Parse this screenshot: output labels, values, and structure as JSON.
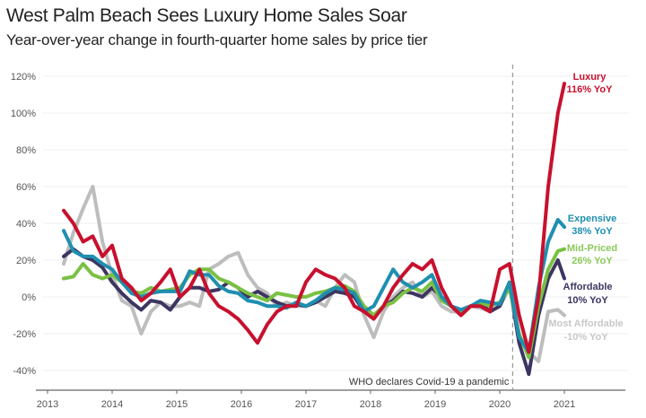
{
  "title": "West Palm Beach Sees Luxury Home Sales Soar",
  "subtitle": "Year-over-year change in fourth-quarter home sales by price tier",
  "chart_data": {
    "type": "line",
    "title": "West Palm Beach Sees Luxury Home Sales Soar",
    "subtitle": "Year-over-year change in fourth-quarter home sales by price tier",
    "xlabel": "",
    "ylabel": "",
    "xlim": [
      2013,
      2021.9
    ],
    "ylim": [
      -50,
      120
    ],
    "y_ticks": [
      "-40%",
      "-20%",
      "0%",
      "20%",
      "40%",
      "60%",
      "80%",
      "100%",
      "120%"
    ],
    "y_tick_values": [
      -40,
      -20,
      0,
      20,
      40,
      60,
      80,
      100,
      120
    ],
    "x_ticks": [
      "2013",
      "2014",
      "2015",
      "2016",
      "2017",
      "2018",
      "2019",
      "2020",
      "2021"
    ],
    "x_tick_values": [
      2013,
      2014,
      2015,
      2016,
      2017,
      2018,
      2019,
      2020,
      2021
    ],
    "grid": true,
    "annotation": {
      "label": "WHO declares Covid-19 a pandemic",
      "x": 2020.2
    },
    "series": [
      {
        "name": "Most Affordable",
        "end_label": "Most Affordable",
        "end_value_label": "-10% YoY",
        "color": "#bdbdbd",
        "x": [
          2013.25,
          2013.4,
          2013.55,
          2013.7,
          2013.85,
          2014.0,
          2014.15,
          2014.3,
          2014.45,
          2014.6,
          2014.75,
          2014.9,
          2015.05,
          2015.2,
          2015.35,
          2015.5,
          2015.65,
          2015.8,
          2015.95,
          2016.1,
          2016.25,
          2016.4,
          2016.55,
          2016.7,
          2016.85,
          2017.0,
          2017.15,
          2017.3,
          2017.45,
          2017.6,
          2017.75,
          2017.9,
          2018.05,
          2018.2,
          2018.35,
          2018.5,
          2018.65,
          2018.8,
          2018.95,
          2019.1,
          2019.25,
          2019.4,
          2019.55,
          2019.7,
          2019.85,
          2020.0,
          2020.15,
          2020.3,
          2020.45,
          2020.6,
          2020.75,
          2020.9,
          2021.0
        ],
        "y": [
          18,
          35,
          48,
          60,
          30,
          12,
          -2,
          -5,
          -20,
          -8,
          -3,
          -5,
          -5,
          -3,
          -5,
          15,
          18,
          22,
          24,
          12,
          5,
          2,
          -5,
          -3,
          -5,
          -5,
          -2,
          -5,
          5,
          12,
          8,
          -10,
          -22,
          -8,
          0,
          5,
          8,
          0,
          3,
          -5,
          -8,
          -8,
          -5,
          -6,
          -8,
          -5,
          5,
          -10,
          -30,
          -35,
          -8,
          -7,
          -10
        ]
      },
      {
        "name": "Affordable",
        "end_label": "Affordable",
        "end_value_label": "10% YoY",
        "color": "#3d3561",
        "x": [
          2013.25,
          2013.4,
          2013.55,
          2013.7,
          2013.85,
          2014.0,
          2014.15,
          2014.3,
          2014.45,
          2014.6,
          2014.75,
          2014.9,
          2015.05,
          2015.2,
          2015.35,
          2015.5,
          2015.65,
          2015.8,
          2015.95,
          2016.1,
          2016.25,
          2016.4,
          2016.55,
          2016.7,
          2016.85,
          2017.0,
          2017.15,
          2017.3,
          2017.45,
          2017.6,
          2017.75,
          2017.9,
          2018.05,
          2018.2,
          2018.35,
          2018.5,
          2018.65,
          2018.8,
          2018.95,
          2019.1,
          2019.25,
          2019.4,
          2019.55,
          2019.7,
          2019.85,
          2020.0,
          2020.15,
          2020.3,
          2020.45,
          2020.6,
          2020.75,
          2020.9,
          2021.0
        ],
        "y": [
          22,
          26,
          22,
          20,
          16,
          8,
          2,
          -3,
          -7,
          -2,
          -3,
          -7,
          0,
          5,
          5,
          3,
          4,
          8,
          5,
          0,
          3,
          0,
          -3,
          -5,
          -4,
          -5,
          -3,
          0,
          3,
          2,
          0,
          -8,
          -10,
          -5,
          -2,
          3,
          2,
          0,
          5,
          0,
          -5,
          -7,
          -5,
          -3,
          -8,
          -5,
          7,
          -25,
          -42,
          -10,
          10,
          20,
          10
        ]
      },
      {
        "name": "Mid-Priced",
        "end_label": "Mid-Priced",
        "end_value_label": "26% YoY",
        "color": "#7ac143",
        "x": [
          2013.25,
          2013.4,
          2013.55,
          2013.7,
          2013.85,
          2014.0,
          2014.15,
          2014.3,
          2014.45,
          2014.6,
          2014.75,
          2014.9,
          2015.05,
          2015.2,
          2015.35,
          2015.5,
          2015.65,
          2015.8,
          2015.95,
          2016.1,
          2016.25,
          2016.4,
          2016.55,
          2016.7,
          2016.85,
          2017.0,
          2017.15,
          2017.3,
          2017.45,
          2017.6,
          2017.75,
          2017.9,
          2018.05,
          2018.2,
          2018.35,
          2018.5,
          2018.65,
          2018.8,
          2018.95,
          2019.1,
          2019.25,
          2019.4,
          2019.55,
          2019.7,
          2019.85,
          2020.0,
          2020.15,
          2020.3,
          2020.45,
          2020.6,
          2020.75,
          2020.9,
          2021.0
        ],
        "y": [
          10,
          11,
          18,
          12,
          10,
          12,
          8,
          3,
          2,
          5,
          3,
          4,
          5,
          12,
          15,
          15,
          10,
          8,
          5,
          2,
          0,
          -2,
          2,
          1,
          0,
          0,
          2,
          3,
          5,
          6,
          3,
          -5,
          -10,
          -5,
          -3,
          2,
          5,
          3,
          8,
          -2,
          -5,
          -8,
          -5,
          -3,
          -5,
          -3,
          5,
          -20,
          -33,
          -5,
          15,
          25,
          26
        ]
      },
      {
        "name": "Expensive",
        "end_label": "Expensive",
        "end_value_label": "38% YoY",
        "color": "#1f8fb0",
        "x": [
          2013.25,
          2013.4,
          2013.55,
          2013.7,
          2013.85,
          2014.0,
          2014.15,
          2014.3,
          2014.45,
          2014.6,
          2014.75,
          2014.9,
          2015.05,
          2015.2,
          2015.35,
          2015.5,
          2015.65,
          2015.8,
          2015.95,
          2016.1,
          2016.25,
          2016.4,
          2016.55,
          2016.7,
          2016.85,
          2017.0,
          2017.15,
          2017.3,
          2017.45,
          2017.6,
          2017.75,
          2017.9,
          2018.05,
          2018.2,
          2018.35,
          2018.5,
          2018.65,
          2018.8,
          2018.95,
          2019.1,
          2019.25,
          2019.4,
          2019.55,
          2019.7,
          2019.85,
          2020.0,
          2020.15,
          2020.3,
          2020.45,
          2020.6,
          2020.75,
          2020.9,
          2021.0
        ],
        "y": [
          36,
          25,
          22,
          22,
          18,
          15,
          8,
          2,
          0,
          2,
          3,
          3,
          3,
          14,
          12,
          12,
          6,
          3,
          2,
          -2,
          -3,
          -5,
          -5,
          -6,
          -3,
          -5,
          -2,
          2,
          5,
          4,
          2,
          -8,
          -5,
          5,
          15,
          8,
          5,
          8,
          12,
          0,
          -5,
          -7,
          -5,
          -2,
          -3,
          -4,
          8,
          -22,
          -30,
          5,
          30,
          42,
          38
        ]
      },
      {
        "name": "Luxury",
        "end_label": "Luxury",
        "end_value_label": "116% YoY",
        "color": "#c8102e",
        "x": [
          2013.25,
          2013.4,
          2013.55,
          2013.7,
          2013.85,
          2014.0,
          2014.15,
          2014.3,
          2014.45,
          2014.6,
          2014.75,
          2014.9,
          2015.05,
          2015.2,
          2015.35,
          2015.5,
          2015.65,
          2015.8,
          2015.95,
          2016.1,
          2016.25,
          2016.4,
          2016.55,
          2016.7,
          2016.85,
          2017.0,
          2017.15,
          2017.3,
          2017.45,
          2017.6,
          2017.75,
          2017.9,
          2018.05,
          2018.2,
          2018.35,
          2018.5,
          2018.65,
          2018.8,
          2018.95,
          2019.1,
          2019.25,
          2019.4,
          2019.55,
          2019.7,
          2019.85,
          2020.0,
          2020.15,
          2020.3,
          2020.45,
          2020.6,
          2020.75,
          2020.9,
          2021.0
        ],
        "y": [
          47,
          40,
          30,
          33,
          22,
          28,
          10,
          5,
          -2,
          2,
          8,
          15,
          0,
          5,
          15,
          2,
          -5,
          -8,
          -12,
          -18,
          -25,
          -15,
          -8,
          -5,
          -5,
          8,
          15,
          12,
          10,
          5,
          -5,
          -8,
          -12,
          -5,
          5,
          12,
          18,
          15,
          20,
          5,
          -5,
          -10,
          -5,
          -5,
          -8,
          15,
          18,
          -10,
          -30,
          0,
          60,
          100,
          116
        ]
      }
    ]
  }
}
